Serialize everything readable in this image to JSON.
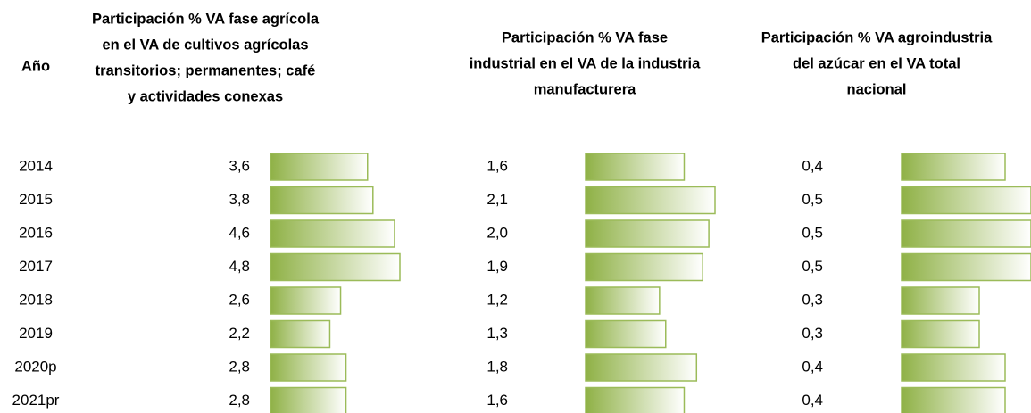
{
  "table": {
    "year_header": "Año",
    "years": [
      "2014",
      "2015",
      "2016",
      "2017",
      "2018",
      "2019",
      "2020p",
      "2021pr"
    ],
    "columns": [
      {
        "header": [
          "Participación % VA fase agrícola",
          "en el VA de cultivos agrícolas",
          "transitorios; permanentes; café",
          "y actividades conexas"
        ],
        "values": [
          3.6,
          3.8,
          4.6,
          4.8,
          2.6,
          2.2,
          2.8,
          2.8
        ],
        "value_labels": [
          "3,6",
          "3,8",
          "4,6",
          "4,8",
          "2,6",
          "2,2",
          "2,8",
          "2,8"
        ]
      },
      {
        "header": [
          "Participación % VA fase",
          "industrial en el VA de la industria",
          "manufacturera"
        ],
        "values": [
          1.6,
          2.1,
          2.0,
          1.9,
          1.2,
          1.3,
          1.8,
          1.6
        ],
        "value_labels": [
          "1,6",
          "2,1",
          "2,0",
          "1,9",
          "1,2",
          "1,3",
          "1,8",
          "1,6"
        ]
      },
      {
        "header": [
          "Participación % VA agroindustria",
          "del azúcar en el VA total",
          "nacional"
        ],
        "values": [
          0.4,
          0.5,
          0.5,
          0.5,
          0.3,
          0.3,
          0.4,
          0.4
        ],
        "value_labels": [
          "0,4",
          "0,5",
          "0,5",
          "0,5",
          "0,3",
          "0,3",
          "0,4",
          "0,4"
        ]
      }
    ]
  }
}
